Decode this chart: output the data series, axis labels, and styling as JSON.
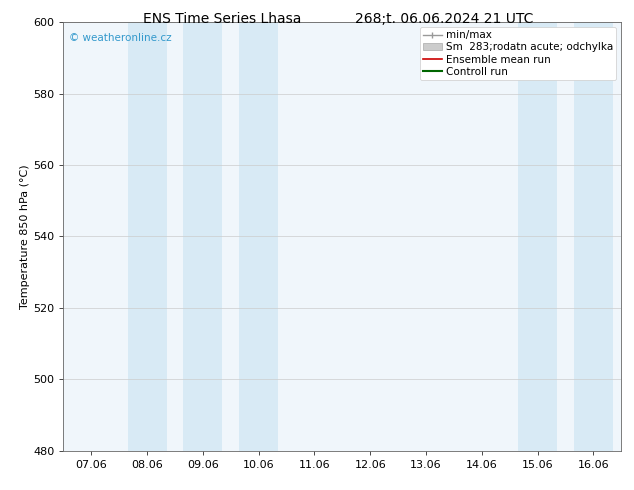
{
  "title_left": "ENS Time Series Lhasa",
  "title_right": "268;t. 06.06.2024 21 UTC",
  "ylabel": "Temperature 850 hPa (°C)",
  "ylim": [
    480,
    600
  ],
  "yticks": [
    480,
    500,
    520,
    540,
    560,
    580,
    600
  ],
  "xtick_labels": [
    "07.06",
    "08.06",
    "09.06",
    "10.06",
    "11.06",
    "12.06",
    "13.06",
    "14.06",
    "15.06",
    "16.06"
  ],
  "n_ticks": 10,
  "bg_color": "#ffffff",
  "plot_bg_color": "#f0f6fb",
  "band_color": "#d8eaf5",
  "band_positions_x": [
    1,
    2,
    3,
    8,
    9
  ],
  "watermark": "© weatheronline.cz",
  "watermark_color": "#3399cc",
  "title_fontsize": 10,
  "axis_label_fontsize": 8,
  "tick_fontsize": 8,
  "legend_fontsize": 7.5
}
